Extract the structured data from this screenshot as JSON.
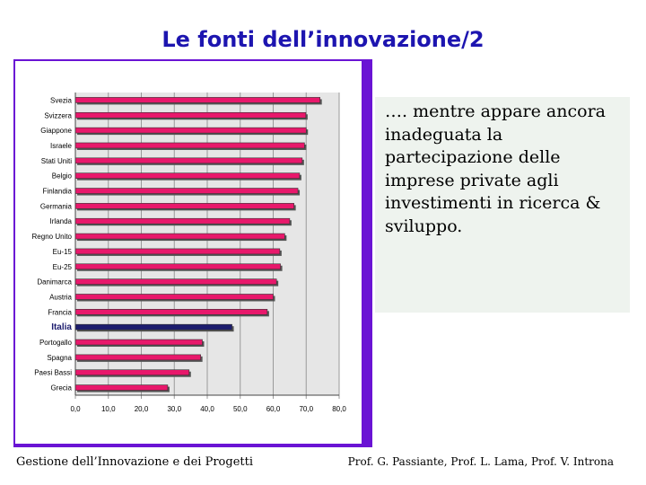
{
  "slide": {
    "title": "Le fonti dell’innovazione/2",
    "side_text": "…. mentre appare ancora inadeguata la partecipazione delle imprese private agli investimenti in ricerca & sviluppo.",
    "footer_left": "Gestione dell’Innovazione e dei Progetti",
    "footer_right": "Prof. G. Passiante, Prof. L. Lama, Prof. V. Introna"
  },
  "colors": {
    "bar": "#e8186b",
    "bar_highlight": "#1c1c6e",
    "frame": "#6a13d4",
    "title": "#1d15b0",
    "textbox_bg": "#eef3ee"
  },
  "chart_data": {
    "type": "bar",
    "orientation": "horizontal",
    "categories": [
      "Svezia",
      "Svizzera",
      "Giappone",
      "Israele",
      "Stati Uniti",
      "Belgio",
      "Finlandia",
      "Germania",
      "Irlanda",
      "Regno Unito",
      "Eu-15",
      "Eu-25",
      "Danimarca",
      "Austria",
      "Francia",
      "Italia",
      "Portogallo",
      "Spagna",
      "Paesi Bassi",
      "Grecia"
    ],
    "values": [
      74.2,
      69.9,
      70.0,
      69.5,
      68.8,
      68.0,
      67.5,
      66.3,
      65.0,
      63.5,
      62.0,
      62.2,
      61.0,
      60.0,
      58.2,
      47.5,
      38.5,
      38.0,
      34.5,
      28.0
    ],
    "highlight": "Italia",
    "xlim": [
      0,
      80
    ],
    "xticks": [
      "0,0",
      "10,0",
      "20,0",
      "30,0",
      "40,0",
      "50,0",
      "60,0",
      "70,0",
      "80,0"
    ],
    "title": "",
    "xlabel": "",
    "ylabel": ""
  }
}
